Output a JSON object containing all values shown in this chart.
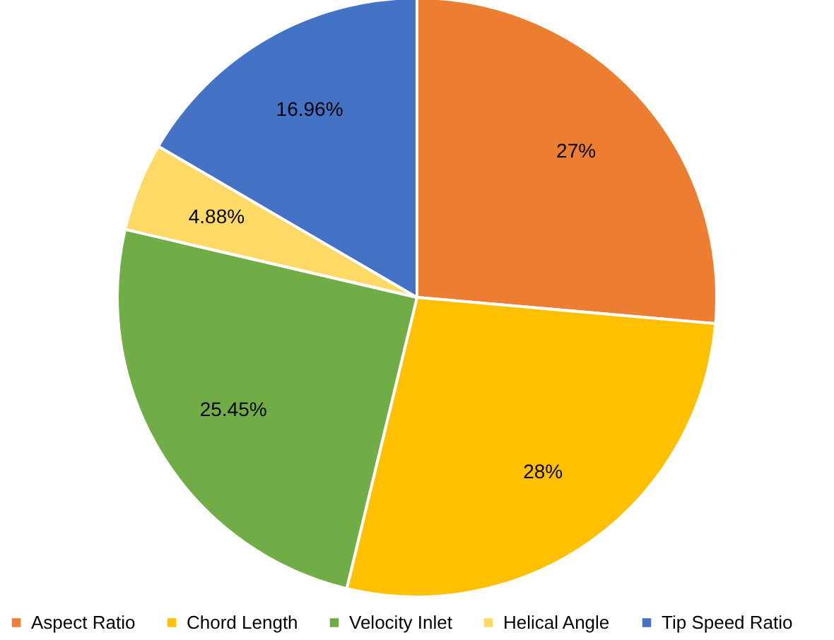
{
  "chart_data": {
    "type": "pie",
    "categories": [
      "Aspect Ratio",
      "Chord Length",
      "Velocity Inlet",
      "Helical Angle",
      "Tip Speed Ratio"
    ],
    "values": [
      27,
      28,
      25.45,
      4.88,
      16.96
    ],
    "colors": [
      "#ed7d31",
      "#ffc000",
      "#70ad47",
      "#ffd966",
      "#4472c4"
    ],
    "value_labels": [
      "27%",
      "28%",
      "25.45%",
      "4.88%",
      "16.96%"
    ],
    "legend": "bottom"
  }
}
